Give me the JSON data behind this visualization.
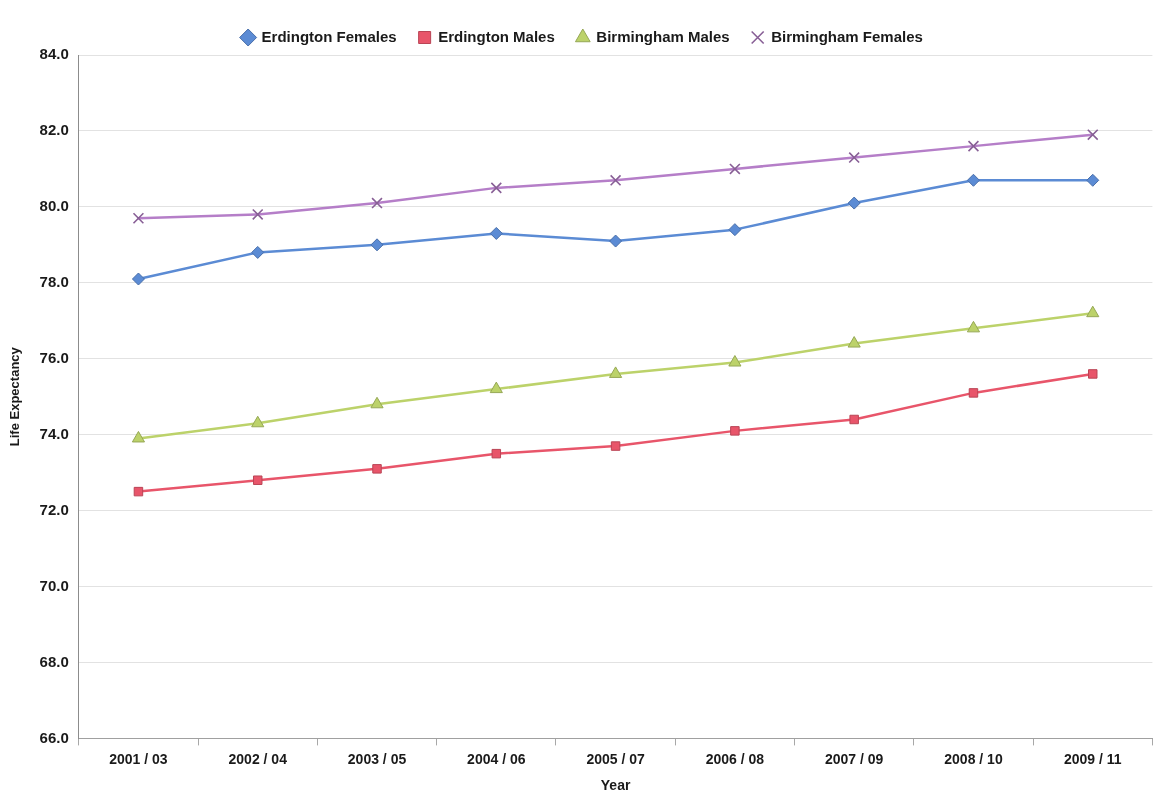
{
  "chart_data": {
    "type": "line",
    "xlabel": "Year",
    "ylabel": "Life Expectancy",
    "categories": [
      "2001 / 03",
      "2002 / 04",
      "2003 / 05",
      "2004 / 06",
      "2005 / 07",
      "2006 / 08",
      "2007 / 09",
      "2008 / 10",
      "2009 / 11"
    ],
    "series": [
      {
        "name": "Erdington Females",
        "color": "#5b8bd4",
        "marker": "diamond",
        "values": [
          78.1,
          78.8,
          79.0,
          79.3,
          79.1,
          79.4,
          80.1,
          80.7,
          80.7
        ]
      },
      {
        "name": "Erdington Males",
        "color": "#e8556a",
        "marker": "square",
        "values": [
          72.5,
          72.8,
          73.1,
          73.5,
          73.7,
          74.1,
          74.4,
          75.1,
          75.6
        ]
      },
      {
        "name": "Birmingham Males",
        "color": "#bcd26a",
        "marker": "triangle",
        "values": [
          73.9,
          74.3,
          74.8,
          75.2,
          75.6,
          75.9,
          76.4,
          76.8,
          77.2
        ]
      },
      {
        "name": "Birmingham Females",
        "color": "#b57ec8",
        "marker": "cross",
        "values": [
          79.7,
          79.8,
          80.1,
          80.5,
          80.7,
          81.0,
          81.3,
          81.6,
          81.9
        ]
      }
    ],
    "ylim": [
      66,
      84
    ],
    "yticks": [
      {
        "value": 66,
        "label": "66.0"
      },
      {
        "value": 68,
        "label": "68.0"
      },
      {
        "value": 70,
        "label": "70.0"
      },
      {
        "value": 72,
        "label": "72.0"
      },
      {
        "value": 74,
        "label": "74.0"
      },
      {
        "value": 76,
        "label": "76.0"
      },
      {
        "value": 78,
        "label": "78.0"
      },
      {
        "value": 80,
        "label": "80.0"
      },
      {
        "value": 82,
        "label": "82.0"
      },
      {
        "value": 84,
        "label": "84.0"
      }
    ],
    "grid": "y",
    "legend": "top",
    "line_style": "solid"
  }
}
